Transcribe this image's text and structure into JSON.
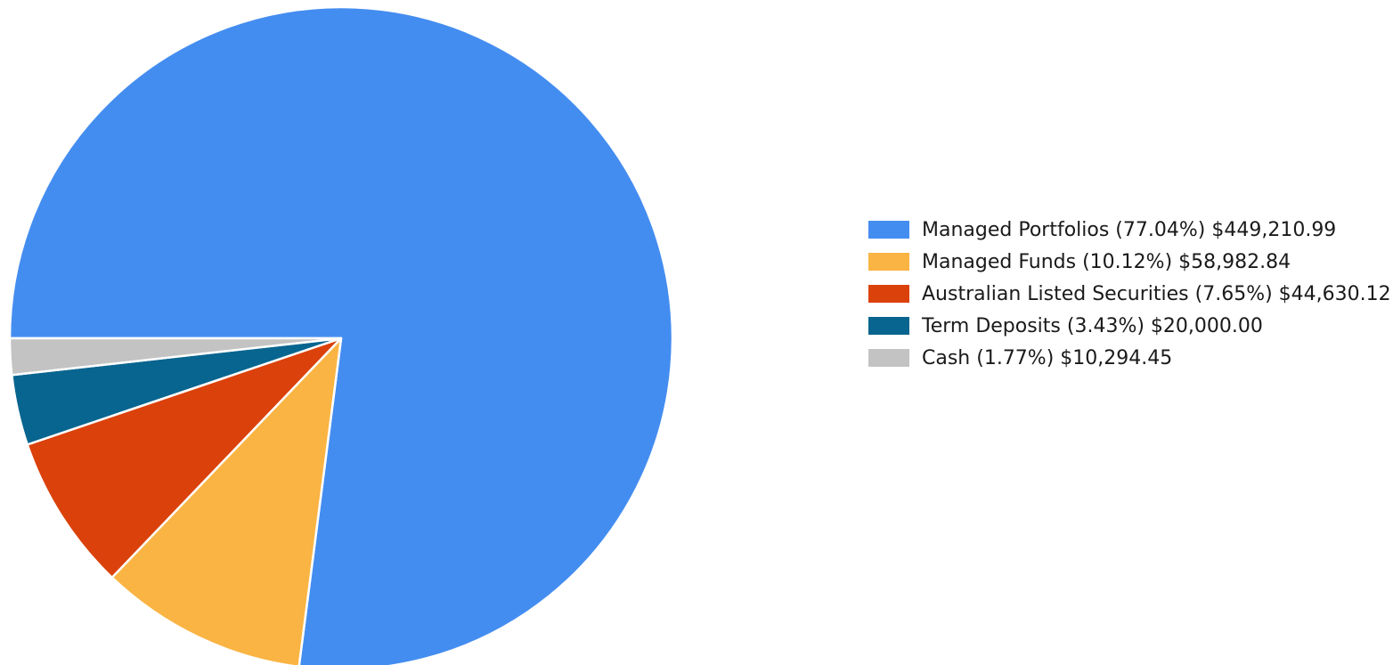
{
  "chart_data": {
    "type": "pie",
    "title": "",
    "series": [
      {
        "name": "Managed Portfolios",
        "percent": 77.04,
        "value": 449210.99,
        "color": "#448DF0",
        "label": "Managed Portfolios (77.04%) $449,210.99"
      },
      {
        "name": "Managed Funds",
        "percent": 10.12,
        "value": 58982.84,
        "color": "#FAB443",
        "label": "Managed Funds (10.12%) $58,982.84"
      },
      {
        "name": "Australian Listed Securities",
        "percent": 7.65,
        "value": 44630.12,
        "color": "#DB410B",
        "label": "Australian Listed Securities (7.65%) $44,630.12"
      },
      {
        "name": "Term Deposits",
        "percent": 3.43,
        "value": 20000.0,
        "color": "#07658F",
        "label": "Term Deposits (3.43%) $20,000.00"
      },
      {
        "name": "Cash",
        "percent": 1.77,
        "value": 10294.45,
        "color": "#C3C3C3",
        "label": "Cash (1.77%) $10,294.45"
      }
    ],
    "legend_position": "right",
    "start_angle": "9 o'clock, clockwise"
  }
}
